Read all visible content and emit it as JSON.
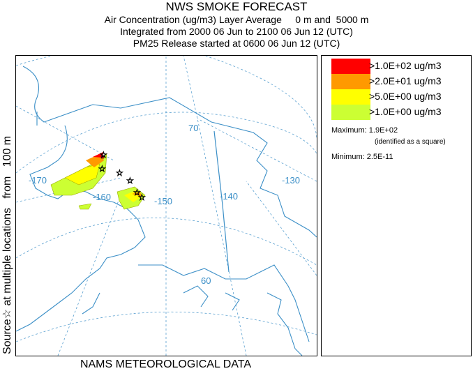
{
  "header": {
    "title": "NWS SMOKE FORECAST",
    "line2": "Air Concentration (ug/m3) Layer Average     0 m and  5000 m",
    "line3": "Integrated from 2000 06 Jun to 2100 06 Jun 12 (UTC)",
    "line4": "PM25 Release started at 0600 06 Jun 12 (UTC)"
  },
  "side_label": "Source☆ at multiple locations   from   100 m",
  "map": {
    "longitude_labels": [
      "-170",
      "-160",
      "-150",
      "-140",
      "-130"
    ],
    "latitude_labels": [
      "70",
      "60"
    ],
    "colors": {
      "coast": "#3b8fc7",
      "graticule": "#5aa0d0",
      "very_high": "#ff0000",
      "high": "#ff9900",
      "medium": "#ffff00",
      "low": "#ccff33"
    }
  },
  "legend": {
    "items": [
      {
        "label": ">1.0E+02 ug/m3",
        "color": "#ff0000"
      },
      {
        "label": ">2.0E+01 ug/m3",
        "color": "#ff9900"
      },
      {
        "label": ">5.0E+00 ug/m3",
        "color": "#ffff00"
      },
      {
        "label": ">1.0E+00 ug/m3",
        "color": "#ccff33"
      }
    ],
    "maximum_label": "Maximum: 1.9E+02",
    "maximum_note": "(identified as a square)",
    "minimum_label": "Minimum: 2.5E-11"
  },
  "footer": "NAMS METEOROLOGICAL DATA"
}
